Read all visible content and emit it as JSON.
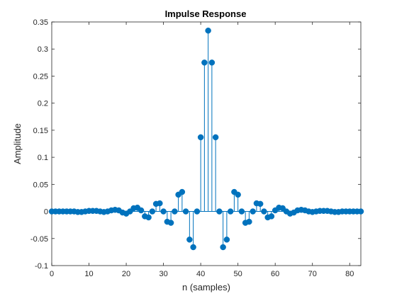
{
  "colors": {
    "stem": "#0072BD",
    "axes": "#262626",
    "background": "#ffffff"
  },
  "chart_data": {
    "type": "stem",
    "title": "Impulse Response",
    "xlabel": "n (samples)",
    "ylabel": "Amplitude",
    "xlim": [
      0,
      83
    ],
    "ylim": [
      -0.1,
      0.35
    ],
    "grid": false,
    "legend": "none",
    "xticks": [
      0,
      10,
      20,
      30,
      40,
      50,
      60,
      70,
      80
    ],
    "xtick_labels": [
      "0",
      "10",
      "20",
      "30",
      "40",
      "50",
      "60",
      "70",
      "80"
    ],
    "yticks": [
      -0.1,
      -0.05,
      0,
      0.05,
      0.1,
      0.15,
      0.2,
      0.25,
      0.3,
      0.35
    ],
    "ytick_labels": [
      "-0.1",
      "-0.05",
      "0",
      "0.05",
      "0.1",
      "0.15",
      "0.2",
      "0.25",
      "0.3",
      "0.35"
    ],
    "x": [
      0,
      1,
      2,
      3,
      4,
      5,
      6,
      7,
      8,
      9,
      10,
      11,
      12,
      13,
      14,
      15,
      16,
      17,
      18,
      19,
      20,
      21,
      22,
      23,
      24,
      25,
      26,
      27,
      28,
      29,
      30,
      31,
      32,
      33,
      34,
      35,
      36,
      37,
      38,
      39,
      40,
      41,
      42,
      43,
      44,
      45,
      46,
      47,
      48,
      49,
      50,
      51,
      52,
      53,
      54,
      55,
      56,
      57,
      58,
      59,
      60,
      61,
      62,
      63,
      64,
      65,
      66,
      67,
      68,
      69,
      70,
      71,
      72,
      73,
      74,
      75,
      76,
      77,
      78,
      79,
      80,
      81,
      82,
      83
    ],
    "y": [
      0,
      0,
      0,
      0,
      0,
      0,
      0,
      -0.001,
      -0.001,
      0,
      0.001,
      0.001,
      0.001,
      0,
      -0.001,
      0,
      0.002,
      0.003,
      0.002,
      -0.002,
      -0.004,
      0,
      0.006,
      0.007,
      0.002,
      -0.009,
      -0.011,
      0,
      0.014,
      0.015,
      0,
      -0.019,
      -0.021,
      0,
      0.031,
      0.036,
      0,
      -0.052,
      -0.066,
      0,
      0.137,
      0.275,
      0.334,
      0.275,
      0.137,
      0,
      -0.066,
      -0.052,
      0,
      0.036,
      0.031,
      0,
      -0.021,
      -0.019,
      0,
      0.015,
      0.014,
      0,
      -0.011,
      -0.009,
      0.002,
      0.007,
      0.006,
      0,
      -0.004,
      -0.002,
      0.002,
      0.003,
      0.002,
      0,
      -0.001,
      0,
      0.001,
      0.001,
      0.001,
      0,
      -0.001,
      -0.001,
      0,
      0,
      0,
      0,
      0,
      0
    ]
  }
}
